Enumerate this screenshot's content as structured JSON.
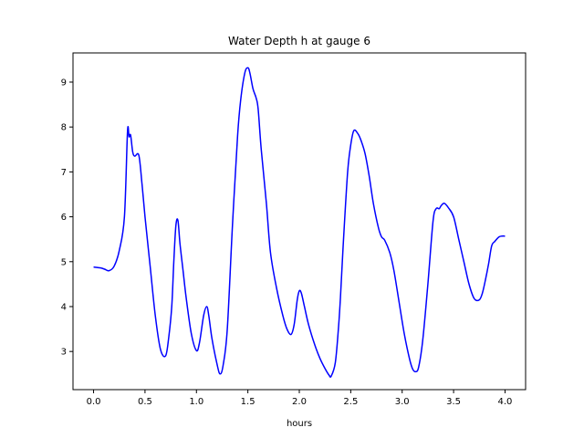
{
  "chart_data": {
    "type": "line",
    "title": "Water Depth h at gauge 6",
    "xlabel": "hours",
    "ylabel": "",
    "xlim": [
      -0.2,
      4.2
    ],
    "ylim": [
      2.15,
      9.65
    ],
    "xticks": [
      0.0,
      0.5,
      1.0,
      1.5,
      2.0,
      2.5,
      3.0,
      3.5,
      4.0
    ],
    "xtick_labels": [
      "0.0",
      "0.5",
      "1.0",
      "1.5",
      "2.0",
      "2.5",
      "3.0",
      "3.5",
      "4.0"
    ],
    "yticks": [
      3,
      4,
      5,
      6,
      7,
      8,
      9
    ],
    "ytick_labels": [
      "3",
      "4",
      "5",
      "6",
      "7",
      "8",
      "9"
    ],
    "grid": false,
    "series": [
      {
        "color": "#0000ff",
        "x": [
          0.0,
          0.07,
          0.11,
          0.15,
          0.2,
          0.25,
          0.3,
          0.33,
          0.345,
          0.36,
          0.38,
          0.4,
          0.44,
          0.47,
          0.5,
          0.55,
          0.6,
          0.65,
          0.7,
          0.73,
          0.76,
          0.78,
          0.8,
          0.82,
          0.84,
          0.87,
          0.9,
          0.95,
          1.0,
          1.03,
          1.07,
          1.1,
          1.12,
          1.15,
          1.2,
          1.23,
          1.26,
          1.3,
          1.35,
          1.4,
          1.43,
          1.47,
          1.5,
          1.52,
          1.55,
          1.58,
          1.6,
          1.63,
          1.68,
          1.72,
          1.78,
          1.84,
          1.88,
          1.92,
          1.95,
          1.98,
          2.0,
          2.02,
          2.05,
          2.09,
          2.15,
          2.2,
          2.25,
          2.29,
          2.31,
          2.35,
          2.38,
          2.4,
          2.43,
          2.47,
          2.5,
          2.53,
          2.57,
          2.6,
          2.64,
          2.68,
          2.72,
          2.77,
          2.8,
          2.83,
          2.88,
          2.92,
          2.97,
          3.02,
          3.07,
          3.1,
          3.13,
          3.16,
          3.2,
          3.25,
          3.3,
          3.33,
          3.36,
          3.38,
          3.41,
          3.45,
          3.5,
          3.55,
          3.6,
          3.65,
          3.7,
          3.75,
          3.78,
          3.81,
          3.84,
          3.87,
          3.9,
          3.94,
          3.97,
          4.0
        ],
        "y": [
          4.88,
          4.86,
          4.83,
          4.8,
          4.9,
          5.25,
          6.0,
          7.9,
          7.78,
          7.82,
          7.45,
          7.35,
          7.37,
          6.75,
          6.0,
          4.9,
          3.8,
          3.05,
          2.9,
          3.3,
          4.0,
          5.0,
          5.8,
          5.92,
          5.4,
          4.8,
          4.2,
          3.4,
          3.02,
          3.2,
          3.8,
          4.0,
          3.8,
          3.3,
          2.72,
          2.5,
          2.7,
          3.5,
          5.8,
          7.8,
          8.6,
          9.2,
          9.32,
          9.2,
          8.85,
          8.65,
          8.4,
          7.5,
          6.3,
          5.2,
          4.4,
          3.8,
          3.5,
          3.38,
          3.6,
          4.15,
          4.35,
          4.3,
          4.0,
          3.6,
          3.15,
          2.85,
          2.62,
          2.47,
          2.45,
          2.75,
          3.5,
          4.2,
          5.5,
          7.0,
          7.6,
          7.92,
          7.85,
          7.7,
          7.4,
          6.9,
          6.3,
          5.75,
          5.55,
          5.48,
          5.2,
          4.8,
          4.1,
          3.4,
          2.85,
          2.62,
          2.55,
          2.65,
          3.25,
          4.5,
          5.9,
          6.18,
          6.18,
          6.25,
          6.3,
          6.2,
          6.0,
          5.5,
          5.0,
          4.5,
          4.18,
          4.15,
          4.3,
          4.6,
          4.95,
          5.35,
          5.45,
          5.55,
          5.57,
          5.57
        ]
      }
    ]
  }
}
